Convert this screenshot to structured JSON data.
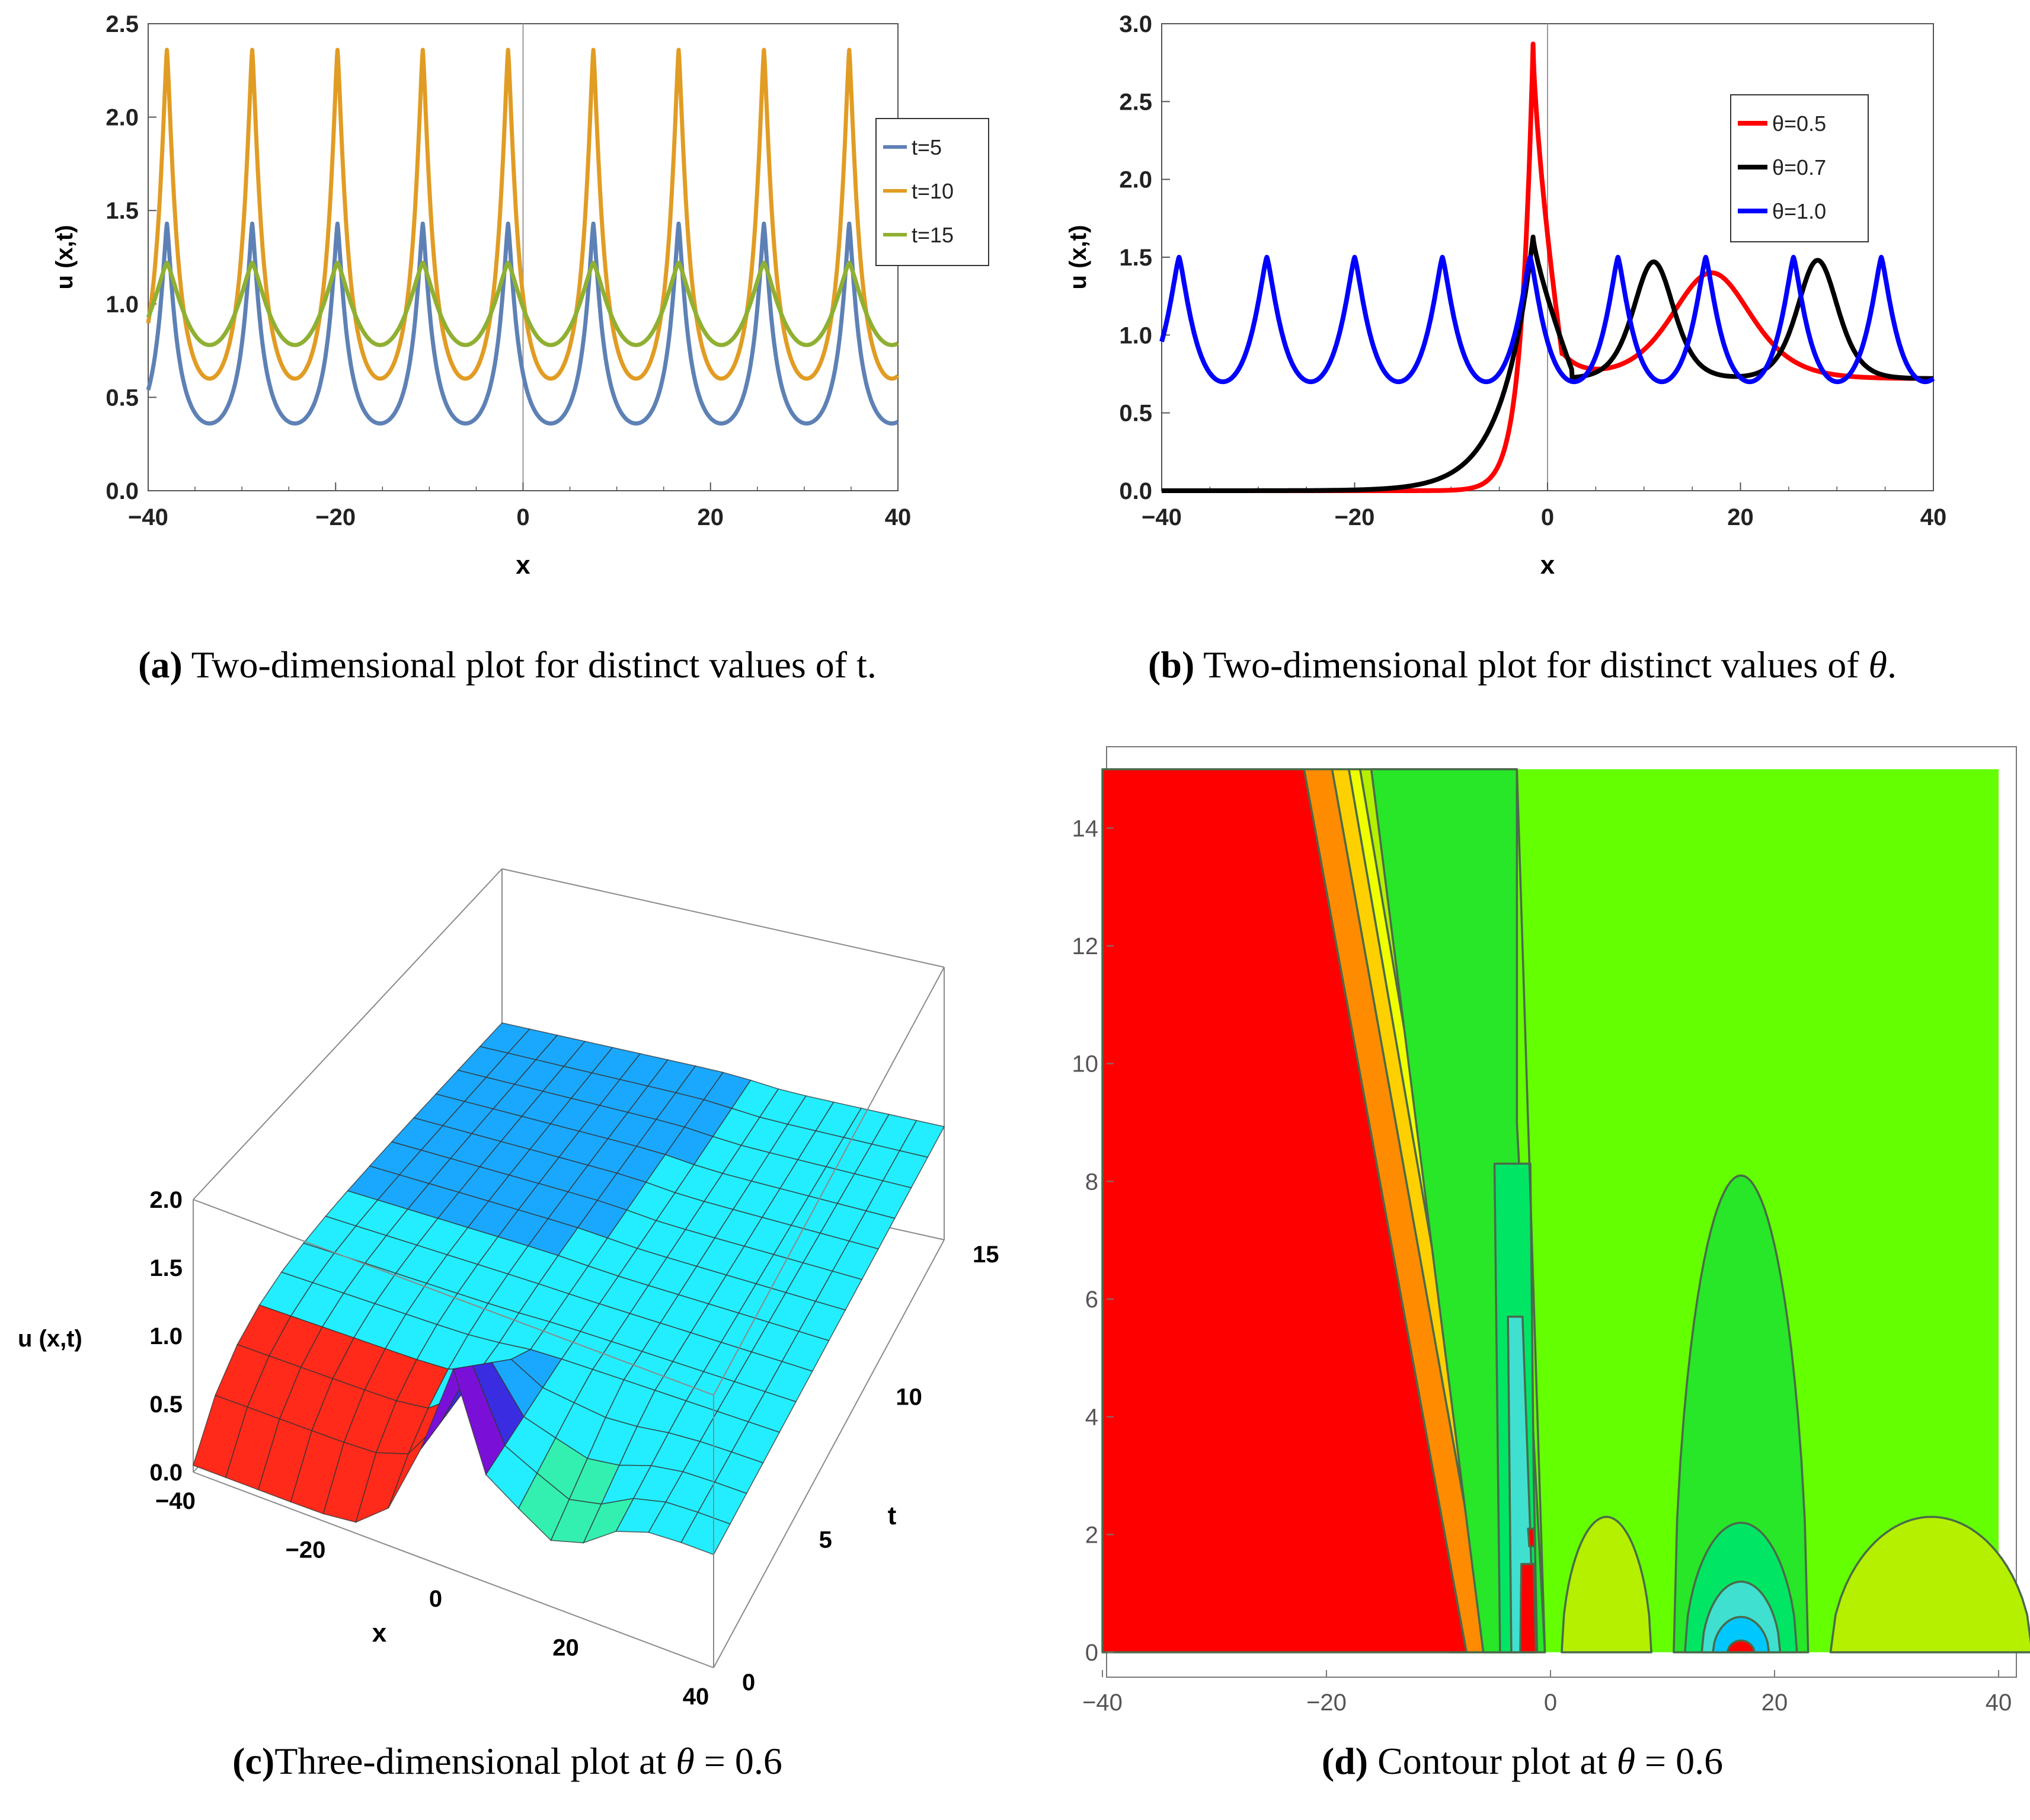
{
  "figure": {
    "captions": {
      "a": {
        "letter": "(a)",
        "text": "Two-dimensional plot for distinct values of t."
      },
      "b": {
        "letter": "(b)",
        "text_pre": "Two-dimensional plot for distinct values of ",
        "symbol": "θ",
        "text_post": "."
      },
      "c": {
        "letter": "(c)",
        "text_pre": "Three-dimensional plot at ",
        "symbol": "θ",
        "text_post": " = 0.6"
      },
      "d": {
        "letter": "(d)",
        "text_pre": "Contour plot at ",
        "symbol": "θ",
        "text_post": " = 0.6"
      }
    }
  },
  "chart_data": [
    {
      "id": "a",
      "type": "line",
      "xlabel": "x",
      "ylabel": "u (x,t)",
      "xlim": [
        -40,
        40
      ],
      "ylim": [
        0,
        2.5
      ],
      "xticks": [
        -40,
        -20,
        0,
        20,
        40
      ],
      "yticks": [
        0.0,
        0.5,
        1.0,
        1.5,
        2.0,
        2.5
      ],
      "period": 9.1,
      "peak_x": -38.0,
      "legend_position": "right",
      "series": [
        {
          "name": "t=5",
          "color": "#5e81b5",
          "min": 0.36,
          "max": 1.43
        },
        {
          "name": "t=10",
          "color": "#e19c24",
          "min": 0.6,
          "max": 2.36
        },
        {
          "name": "t=15",
          "color": "#8fb032",
          "min": 0.78,
          "max": 1.22
        }
      ]
    },
    {
      "id": "b",
      "type": "line",
      "xlabel": "x",
      "ylabel": "u (x,t)",
      "xlim": [
        -40,
        40
      ],
      "ylim": [
        0,
        3.0
      ],
      "xticks": [
        -40,
        -20,
        0,
        20,
        40
      ],
      "yticks": [
        0.0,
        0.5,
        1.0,
        1.5,
        2.0,
        2.5,
        3.0
      ],
      "legend_position": "top-right",
      "series": [
        {
          "name": "θ=0.5",
          "color": "#ff0000",
          "peak_x": -1.5,
          "peak_value": 2.87,
          "hump_x": 17,
          "hump_value": 1.4,
          "tail_value": 0.72
        },
        {
          "name": "θ=0.7",
          "color": "#000000",
          "peak_x": -1.5,
          "peak_value": 1.63,
          "hump_x": [
            11,
            28
          ],
          "hump_value": 1.47,
          "tail_value": 0.72
        },
        {
          "name": "θ=1.0",
          "color": "#0000ff",
          "period": 9.1,
          "peak_x": -38.2,
          "min": 0.7,
          "max": 1.5
        }
      ]
    },
    {
      "id": "c",
      "type": "surface",
      "xlabel": "x",
      "ylabel": "t",
      "zlabel": "u (x,t)",
      "xlim": [
        -40,
        40
      ],
      "ylim": [
        0,
        15
      ],
      "zlim": [
        0,
        2
      ],
      "xticks": [
        -40,
        -20,
        0,
        20,
        40
      ],
      "yticks": [
        0,
        5,
        10,
        15
      ],
      "zticks": [
        0.0,
        0.5,
        1.0,
        1.5,
        2.0
      ],
      "colors": [
        "#ff1a1a",
        "#ffaa00",
        "#2ee84a",
        "#1ee8ff",
        "#3020d0",
        "#8a00d0"
      ]
    },
    {
      "id": "d",
      "type": "contour",
      "xlim": [
        -40,
        40
      ],
      "ylim": [
        0,
        15
      ],
      "xticks": [
        -40,
        -20,
        0,
        20,
        40
      ],
      "yticks": [
        0,
        2,
        4,
        6,
        8,
        10,
        12,
        14
      ],
      "colors": [
        "#ff0000",
        "#ff8c00",
        "#ffd000",
        "#f0ff00",
        "#b4f000",
        "#64ff00",
        "#28e628",
        "#00e664",
        "#40e0d0",
        "#00c8ff"
      ]
    }
  ]
}
